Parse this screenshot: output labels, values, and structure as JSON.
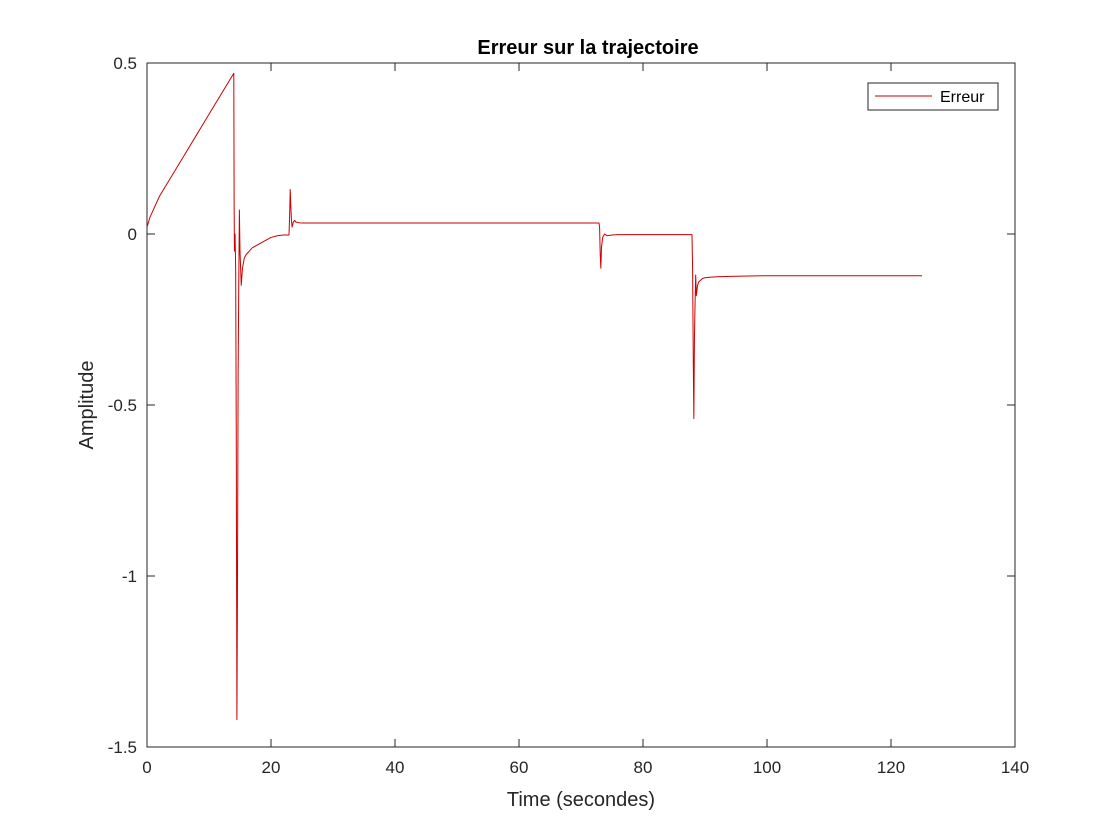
{
  "chart_data": {
    "type": "line",
    "title": "Erreur sur la trajectoire",
    "xlabel": "Time (secondes)",
    "ylabel": "Amplitude",
    "xlim": [
      0,
      140
    ],
    "ylim": [
      -1.5,
      0.5
    ],
    "xticks": [
      0,
      20,
      40,
      60,
      80,
      100,
      120,
      140
    ],
    "xtick_labels": [
      "0",
      "20",
      "40",
      "60",
      "80",
      "100",
      "120",
      "140"
    ],
    "yticks": [
      -1.5,
      -1,
      -0.5,
      0,
      0.5
    ],
    "ytick_labels": [
      "-1.5",
      "-1",
      "-0.5",
      "0",
      "0.5"
    ],
    "grid": false,
    "box": true,
    "legend": {
      "position": "top-right",
      "entries": [
        {
          "name": "Erreur",
          "color": "#cc0000"
        }
      ]
    },
    "series": [
      {
        "name": "Erreur",
        "color": "#cc0000",
        "x": [
          0,
          0.5,
          1,
          2,
          4,
          6,
          8,
          10,
          12,
          14,
          14.05,
          14.1,
          14.2,
          14.3,
          14.4,
          14.5,
          14.6,
          14.7,
          14.8,
          14.9,
          15.0,
          15.2,
          15.4,
          15.7,
          16,
          16.5,
          17,
          18,
          19,
          20,
          21,
          22,
          22.9,
          23.0,
          23.1,
          23.2,
          23.3,
          23.4,
          23.6,
          23.8,
          24,
          24.5,
          25,
          30,
          40,
          50,
          60,
          70,
          72.9,
          73.0,
          73.1,
          73.2,
          73.3,
          73.5,
          73.8,
          74.2,
          75,
          76,
          80,
          85,
          87.9,
          88.0,
          88.1,
          88.2,
          88.3,
          88.4,
          88.5,
          88.6,
          88.8,
          89.0,
          89.3,
          89.6,
          90,
          91,
          92,
          94,
          96,
          100,
          105,
          110,
          115,
          120,
          125
        ],
        "y": [
          0.02,
          0.05,
          0.07,
          0.11,
          0.17,
          0.23,
          0.29,
          0.35,
          0.41,
          0.47,
          0.1,
          -0.05,
          0.0,
          -0.1,
          -0.6,
          -1.42,
          -1.0,
          -0.4,
          -0.15,
          0.07,
          -0.05,
          -0.15,
          -0.1,
          -0.07,
          -0.06,
          -0.05,
          -0.04,
          -0.03,
          -0.02,
          -0.01,
          -0.005,
          -0.003,
          -0.003,
          0.05,
          0.13,
          0.08,
          0.04,
          0.02,
          0.035,
          0.04,
          0.035,
          0.033,
          0.032,
          0.032,
          0.032,
          0.032,
          0.032,
          0.032,
          0.032,
          0.02,
          -0.06,
          -0.1,
          -0.04,
          -0.01,
          0.0,
          -0.005,
          -0.003,
          -0.002,
          -0.002,
          -0.002,
          -0.002,
          -0.1,
          -0.35,
          -0.54,
          -0.3,
          -0.2,
          -0.12,
          -0.18,
          -0.15,
          -0.14,
          -0.135,
          -0.13,
          -0.128,
          -0.126,
          -0.125,
          -0.124,
          -0.123,
          -0.122,
          -0.122,
          -0.122,
          -0.122,
          -0.122,
          -0.122
        ]
      }
    ]
  }
}
